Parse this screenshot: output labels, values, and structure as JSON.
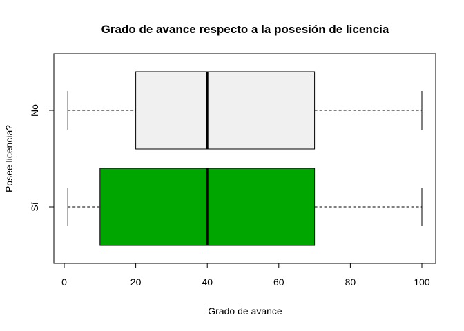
{
  "chart_data": {
    "type": "boxplot",
    "orientation": "horizontal",
    "title": "Grado de avance respecto a la posesión de licencia",
    "xlabel": "Grado de avance",
    "ylabel": "Posee licencia?",
    "xlim": [
      0,
      100
    ],
    "xticks": [
      0,
      20,
      40,
      60,
      80,
      100
    ],
    "categories": [
      "No",
      "Sí"
    ],
    "boxes": [
      {
        "category": "No",
        "min": 1,
        "q1": 20,
        "median": 40,
        "q3": 70,
        "max": 100,
        "color": "#f0f0f0"
      },
      {
        "category": "Sí",
        "min": 1,
        "q1": 10,
        "median": 40,
        "q3": 70,
        "max": 100,
        "color": "#00a600"
      }
    ],
    "grid": false,
    "legend": "none"
  }
}
